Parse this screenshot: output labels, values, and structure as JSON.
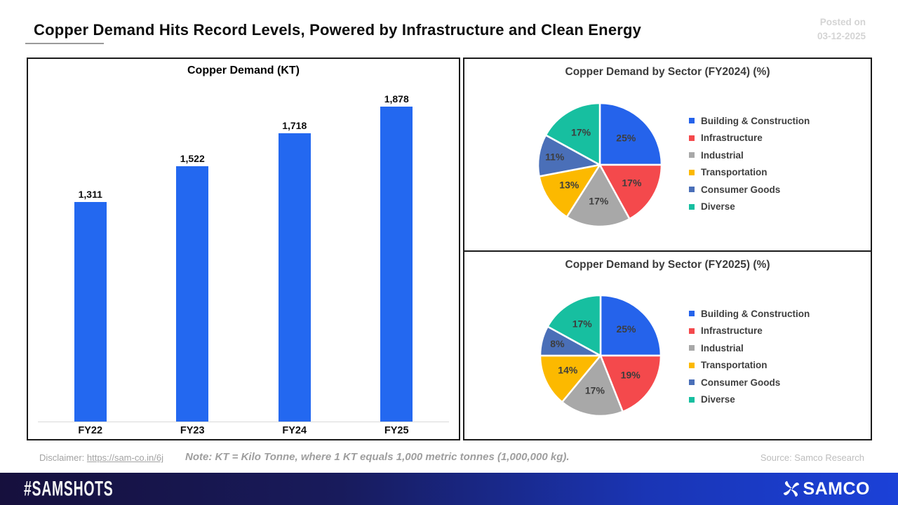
{
  "header": {
    "title": "Copper Demand Hits Record Levels, Powered by Infrastructure and Clean Energy",
    "posted_label": "Posted on",
    "posted_date": "03-12-2025"
  },
  "bottom": {
    "disclaimer_label": "Disclaimer:",
    "disclaimer_link": "https://sam-co.in/6j",
    "note": "Note: KT = Kilo Tonne, where 1 KT equals 1,000 metric tonnes (1,000,000 kg).",
    "source": "Source: Samco Research"
  },
  "footer": {
    "hashtag": "#SAMSHOTS",
    "brand": "SAMCO"
  },
  "colors": {
    "bar_blue": "#2368F0",
    "pie_blue": "#2563EB",
    "pie_red": "#F4494C",
    "pie_gray": "#A8A8A8",
    "pie_yellow": "#FCB900",
    "pie_dark_blue": "#4A6FB8",
    "pie_teal": "#17BFA0",
    "footer_dark": "#16103D",
    "footer_bright": "#1B41D8"
  },
  "chart_data": [
    {
      "type": "bar",
      "title": "Copper Demand (KT)",
      "categories": [
        "FY22",
        "FY23",
        "FY24",
        "FY25"
      ],
      "values": [
        1311,
        1522,
        1718,
        1878
      ],
      "value_labels": [
        "1,311",
        "1,522",
        "1,718",
        "1,878"
      ],
      "bar_color": "#2368F0",
      "xlabel": "",
      "ylabel": "",
      "ylim": [
        0,
        1878
      ],
      "grid": false,
      "legend_position": "none"
    },
    {
      "type": "pie",
      "title": "Copper Demand by Sector (FY2024) (%)",
      "labels": [
        "Building & Construction",
        "Infrastructure",
        "Industrial",
        "Transportation",
        "Consumer Goods",
        "Diverse"
      ],
      "values": [
        25,
        17,
        17,
        13,
        11,
        17
      ],
      "value_labels": [
        "25%",
        "17%",
        "17%",
        "13%",
        "11%",
        "17%"
      ],
      "colors": [
        "#2563EB",
        "#F4494C",
        "#A8A8A8",
        "#FCB900",
        "#4A6FB8",
        "#17BFA0"
      ],
      "start_angle_deg": 0,
      "direction": "clockwise",
      "legend_position": "right"
    },
    {
      "type": "pie",
      "title": "Copper Demand by Sector (FY2025) (%)",
      "labels": [
        "Building & Construction",
        "Infrastructure",
        "Industrial",
        "Transportation",
        "Consumer Goods",
        "Diverse"
      ],
      "values": [
        25,
        19,
        17,
        14,
        8,
        17
      ],
      "value_labels": [
        "25%",
        "19%",
        "17%",
        "14%",
        "8%",
        "17%"
      ],
      "colors": [
        "#2563EB",
        "#F4494C",
        "#A8A8A8",
        "#FCB900",
        "#4A6FB8",
        "#17BFA0"
      ],
      "start_angle_deg": 0,
      "direction": "clockwise",
      "legend_position": "right"
    }
  ]
}
